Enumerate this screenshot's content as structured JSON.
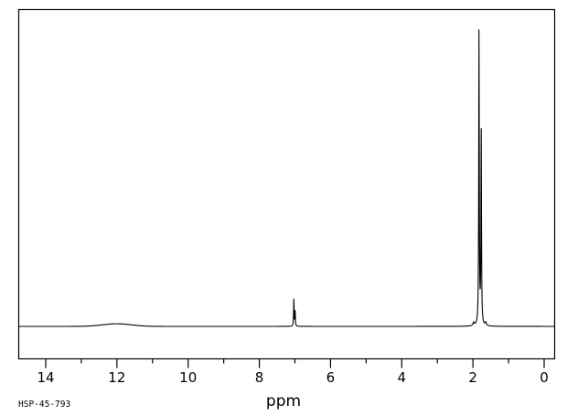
{
  "page": {
    "background_color": "#ffffff",
    "foreground_color": "#000000"
  },
  "footer": {
    "sample_id": "HSP-45-793"
  },
  "chart_data": {
    "type": "line",
    "kind": "NMR spectrum",
    "title": "",
    "xlabel": "ppm",
    "ylabel": "",
    "grid": false,
    "x_axis": {
      "direction": "reversed",
      "range_ppm": [
        14.77,
        -0.28
      ],
      "ticks_major": [
        14,
        12,
        10,
        8,
        6,
        4,
        2,
        0
      ],
      "ticks_minor": [
        13,
        11,
        9,
        7,
        5,
        3,
        1
      ]
    },
    "y_axis": {
      "visible": false,
      "range_rel": [
        0,
        1.0
      ]
    },
    "baseline_rel": 0,
    "peaks": [
      {
        "ppm": 12.0,
        "rel_height": 0.009,
        "width_ppm": 0.4,
        "shape": "gaussian"
      },
      {
        "ppm": 7.03,
        "rel_height": 0.091,
        "width_ppm": 0.008,
        "shape": "lorentzian"
      },
      {
        "ppm": 6.995,
        "rel_height": 0.05,
        "width_ppm": 0.008,
        "shape": "lorentzian"
      },
      {
        "ppm": 1.98,
        "rel_height": 0.011,
        "width_ppm": 0.02,
        "shape": "lorentzian"
      },
      {
        "ppm": 1.83,
        "rel_height": 1.0,
        "width_ppm": 0.009,
        "shape": "lorentzian"
      },
      {
        "ppm": 1.768,
        "rel_height": 0.655,
        "width_ppm": 0.009,
        "shape": "lorentzian"
      },
      {
        "ppm": 1.64,
        "rel_height": 0.011,
        "width_ppm": 0.02,
        "shape": "lorentzian"
      }
    ]
  }
}
